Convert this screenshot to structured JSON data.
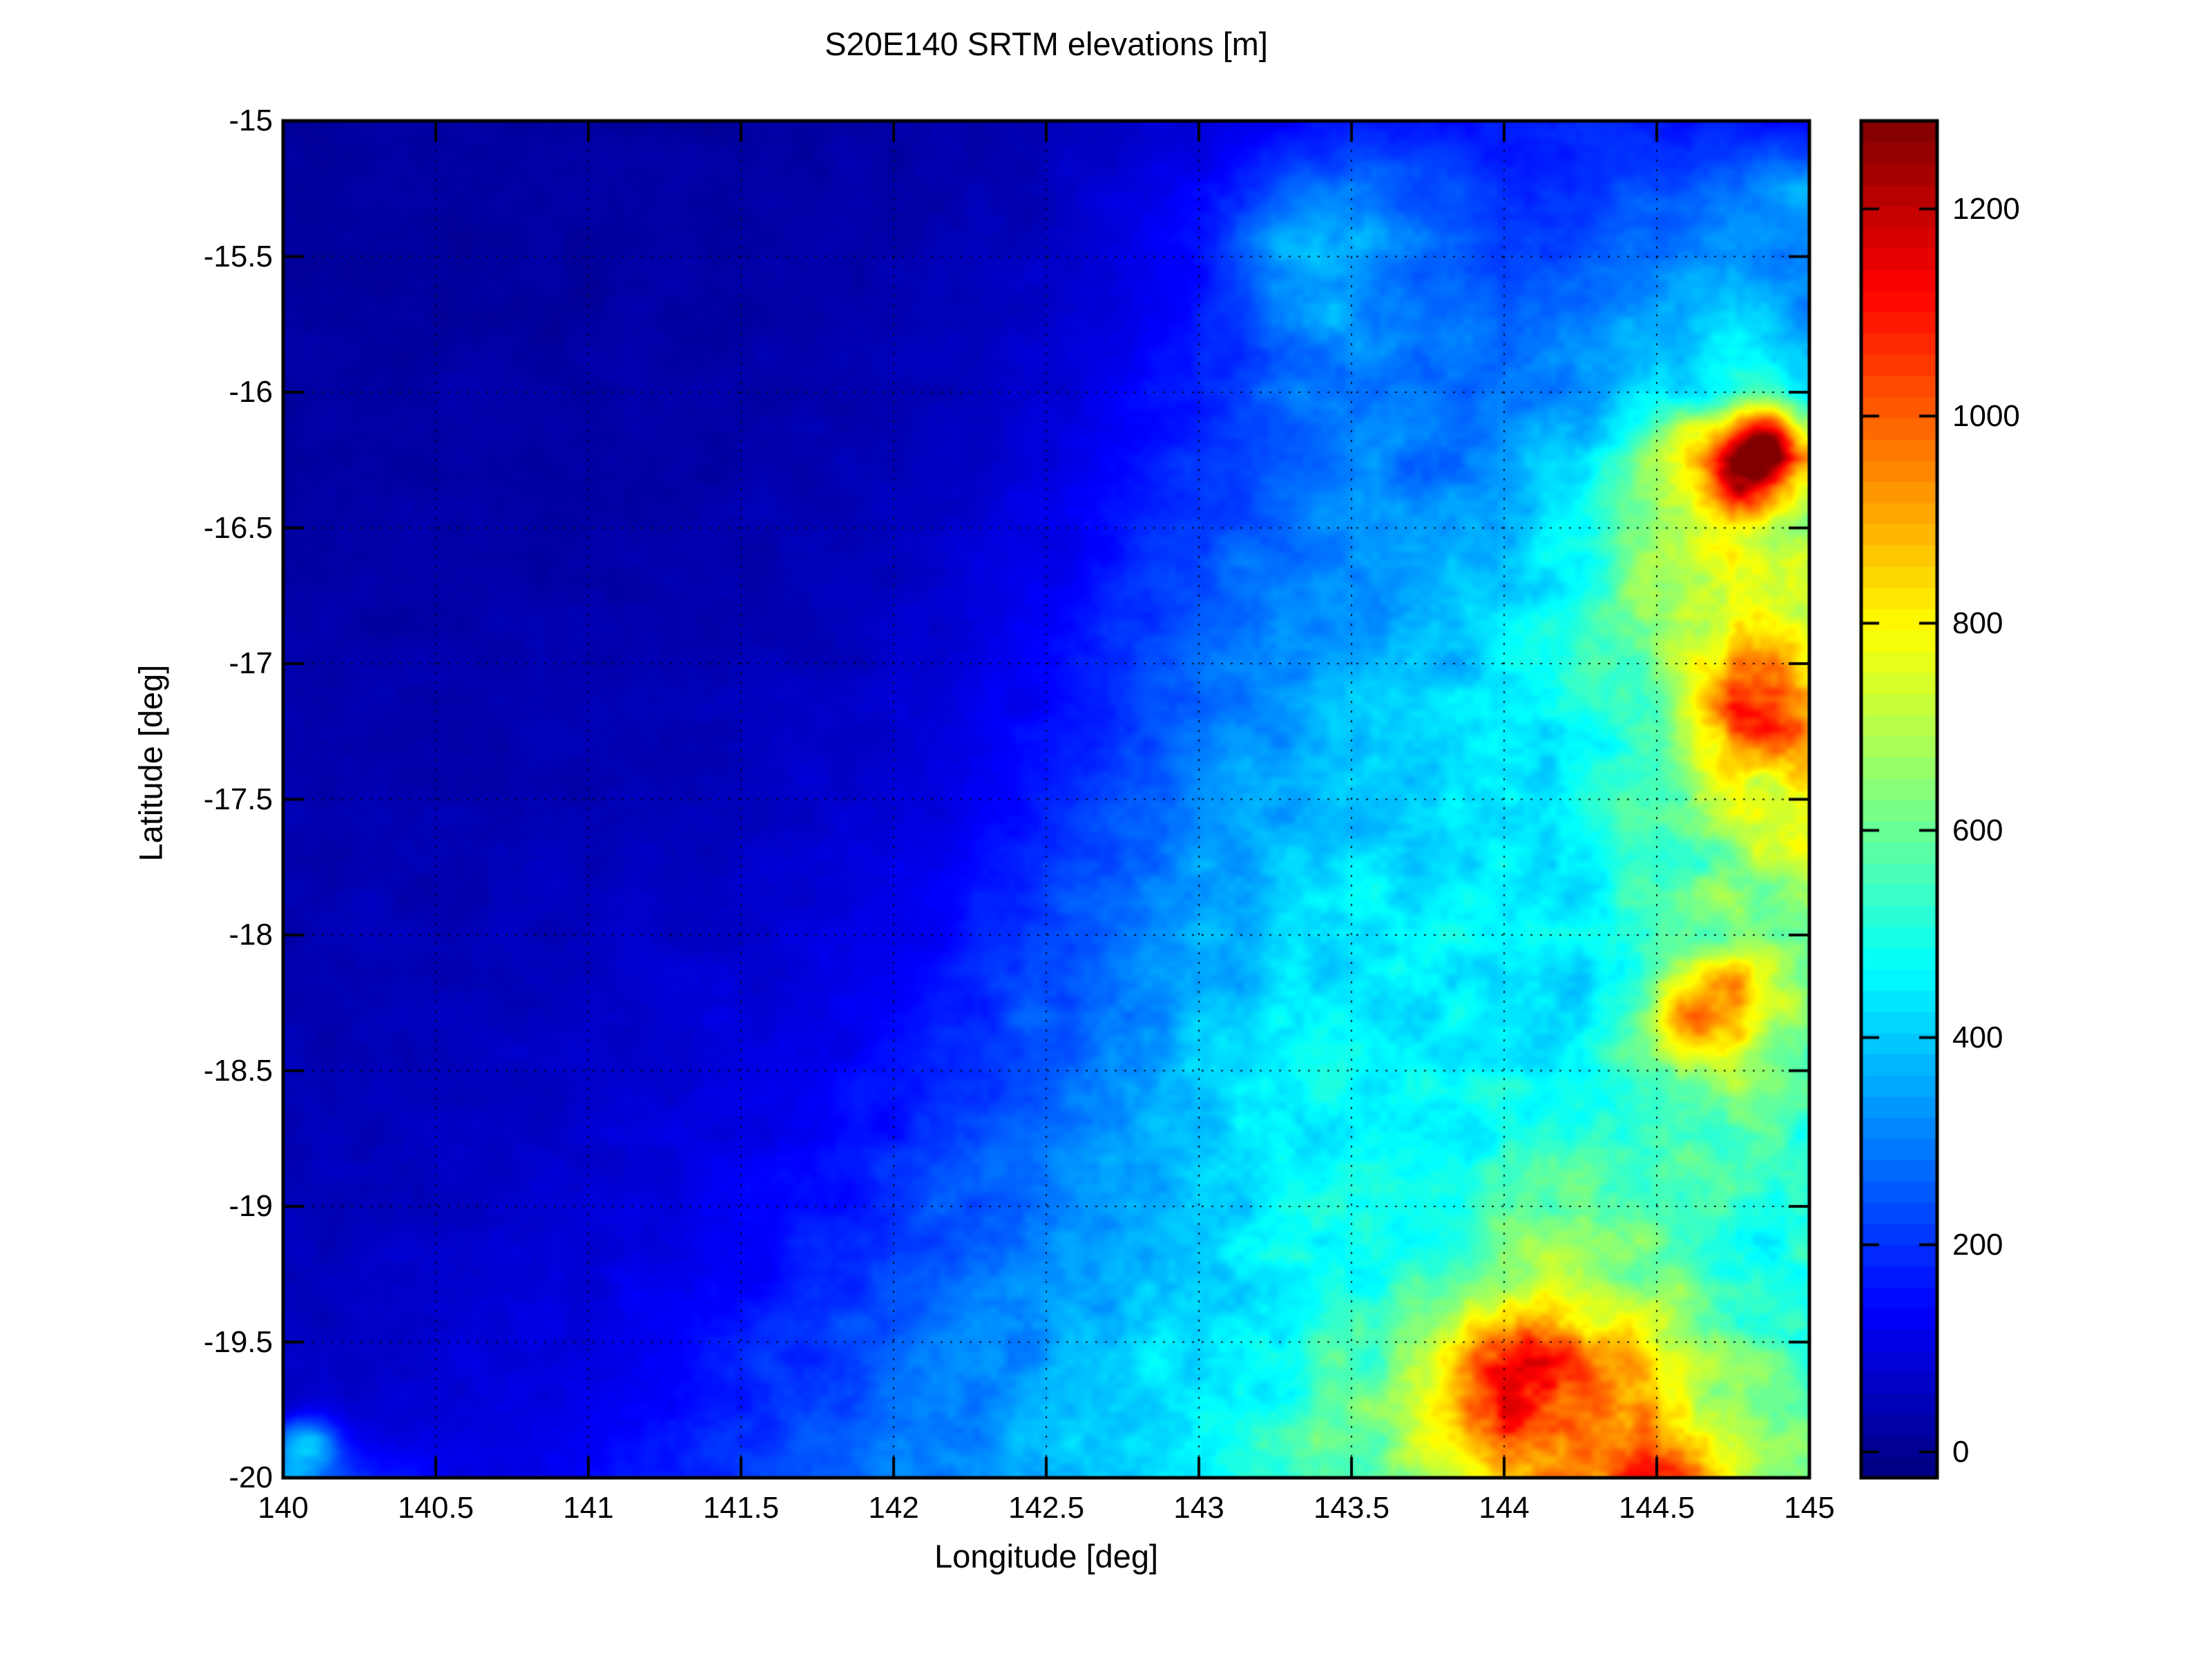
{
  "figure": {
    "title": "S20E140 SRTM elevations [m]",
    "xlabel": "Longitude [deg]",
    "ylabel": "Latitude [deg]",
    "background": "#ffffff",
    "text_color": "#000000"
  },
  "chart_data": {
    "type": "heatmap",
    "title": "S20E140 SRTM elevations [m]",
    "xlabel": "Longitude [deg]",
    "ylabel": "Latitude [deg]",
    "xlim": [
      140,
      145
    ],
    "ylim": [
      -20,
      -15
    ],
    "grid": "dotted",
    "colormap": "jet",
    "color_axis": {
      "vmin": -25,
      "vmax": 1285,
      "units": "m"
    },
    "xticks": {
      "values": [
        140,
        140.5,
        141,
        141.5,
        142,
        142.5,
        143,
        143.5,
        144,
        144.5,
        145
      ],
      "labels": [
        "140",
        "140.5",
        "141",
        "141.5",
        "142",
        "142.5",
        "143",
        "143.5",
        "144",
        "144.5",
        "145"
      ]
    },
    "yticks": {
      "values": [
        -15,
        -15.5,
        -16,
        -16.5,
        -17,
        -17.5,
        -18,
        -18.5,
        -19,
        -19.5,
        -20
      ],
      "labels": [
        "-15",
        "-15.5",
        "-16",
        "-16.5",
        "-17",
        "-17.5",
        "-18",
        "-18.5",
        "-19",
        "-19.5",
        "-20"
      ]
    },
    "colorbar": {
      "tick_values": [
        0,
        200,
        400,
        600,
        800,
        1000,
        1200
      ],
      "tick_labels": [
        "0",
        "200",
        "400",
        "600",
        "800",
        "1000",
        "1200"
      ],
      "bands": 64
    },
    "elevation_grid": {
      "units": "m",
      "lon_start": 140,
      "lon_step": 0.25,
      "lat_start": -15,
      "lat_step": -0.25,
      "note": "coarse 21x21 sampling of the SRTM tile, rows north to south",
      "values": [
        [
          15,
          15,
          14,
          14,
          15,
          16,
          18,
          20,
          24,
          30,
          40,
          60,
          90,
          130,
          155,
          165,
          175,
          185,
          175,
          160,
          150
        ],
        [
          15,
          15,
          15,
          15,
          16,
          18,
          20,
          24,
          30,
          40,
          55,
          85,
          130,
          220,
          300,
          240,
          200,
          210,
          230,
          280,
          380
        ],
        [
          16,
          16,
          16,
          16,
          18,
          20,
          22,
          26,
          32,
          45,
          60,
          95,
          150,
          260,
          320,
          260,
          220,
          240,
          280,
          330,
          300
        ],
        [
          18,
          18,
          18,
          18,
          20,
          22,
          25,
          30,
          38,
          50,
          70,
          110,
          180,
          280,
          330,
          300,
          260,
          300,
          350,
          400,
          350
        ],
        [
          20,
          20,
          20,
          20,
          22,
          25,
          28,
          34,
          42,
          55,
          80,
          120,
          180,
          260,
          300,
          280,
          280,
          340,
          430,
          520,
          430
        ],
        [
          22,
          22,
          22,
          22,
          25,
          28,
          32,
          38,
          48,
          65,
          95,
          140,
          200,
          260,
          300,
          300,
          330,
          430,
          700,
          1050,
          870
        ],
        [
          25,
          25,
          25,
          25,
          28,
          32,
          36,
          42,
          55,
          75,
          110,
          160,
          220,
          280,
          320,
          330,
          370,
          450,
          600,
          740,
          650
        ],
        [
          28,
          28,
          28,
          28,
          32,
          36,
          40,
          48,
          62,
          85,
          120,
          180,
          240,
          300,
          340,
          360,
          400,
          480,
          660,
          810,
          700
        ],
        [
          30,
          30,
          30,
          32,
          36,
          40,
          45,
          55,
          70,
          95,
          135,
          200,
          260,
          320,
          360,
          380,
          420,
          500,
          610,
          840,
          800
        ],
        [
          32,
          32,
          32,
          36,
          40,
          45,
          50,
          60,
          78,
          105,
          150,
          220,
          280,
          340,
          380,
          400,
          430,
          480,
          580,
          880,
          820
        ],
        [
          35,
          35,
          36,
          40,
          45,
          50,
          56,
          68,
          88,
          120,
          170,
          240,
          300,
          360,
          400,
          415,
          440,
          480,
          560,
          700,
          780
        ],
        [
          38,
          38,
          40,
          45,
          50,
          56,
          64,
          78,
          100,
          140,
          200,
          260,
          320,
          380,
          415,
          430,
          450,
          480,
          540,
          620,
          700
        ],
        [
          40,
          42,
          45,
          50,
          56,
          64,
          75,
          90,
          115,
          160,
          220,
          280,
          340,
          400,
          430,
          440,
          460,
          430,
          560,
          640,
          600
        ],
        [
          42,
          45,
          48,
          54,
          62,
          72,
          85,
          105,
          135,
          185,
          250,
          310,
          370,
          420,
          440,
          450,
          470,
          400,
          650,
          880,
          650
        ],
        [
          45,
          48,
          52,
          58,
          68,
          80,
          95,
          118,
          152,
          210,
          270,
          330,
          390,
          430,
          450,
          460,
          470,
          450,
          560,
          700,
          560
        ],
        [
          48,
          52,
          56,
          64,
          75,
          90,
          108,
          135,
          175,
          235,
          290,
          350,
          400,
          440,
          460,
          470,
          480,
          500,
          540,
          560,
          520
        ],
        [
          52,
          56,
          62,
          72,
          85,
          100,
          122,
          155,
          200,
          260,
          310,
          360,
          410,
          450,
          470,
          490,
          560,
          620,
          560,
          520,
          480
        ],
        [
          56,
          62,
          70,
          82,
          96,
          115,
          140,
          178,
          230,
          280,
          330,
          380,
          420,
          460,
          490,
          540,
          620,
          700,
          620,
          540,
          500
        ],
        [
          62,
          68,
          78,
          92,
          110,
          132,
          162,
          205,
          255,
          300,
          350,
          400,
          440,
          480,
          540,
          640,
          800,
          900,
          750,
          600,
          520
        ],
        [
          70,
          78,
          88,
          105,
          125,
          152,
          188,
          235,
          280,
          320,
          370,
          420,
          460,
          500,
          580,
          700,
          950,
          900,
          850,
          700,
          560
        ],
        [
          300,
          200,
          120,
          118,
          140,
          170,
          210,
          255,
          300,
          340,
          390,
          430,
          470,
          520,
          600,
          720,
          880,
          950,
          900,
          800,
          620
        ]
      ]
    },
    "peaks": [
      {
        "lon": 144.85,
        "lat": -16.2,
        "sigma": 0.09,
        "amp": 430
      },
      {
        "lon": 144.78,
        "lat": -16.33,
        "sigma": 0.07,
        "amp": 200
      },
      {
        "lon": 144.86,
        "lat": -17.15,
        "sigma": 0.13,
        "amp": 220
      },
      {
        "lon": 144.65,
        "lat": -18.3,
        "sigma": 0.11,
        "amp": 200
      },
      {
        "lon": 144.05,
        "lat": -19.63,
        "sigma": 0.14,
        "amp": 280
      },
      {
        "lon": 144.5,
        "lat": -19.95,
        "sigma": 0.12,
        "amp": 160
      },
      {
        "lon": 143.35,
        "lat": -15.5,
        "sigma": 0.14,
        "amp": 90
      },
      {
        "lon": 140.08,
        "lat": -19.87,
        "sigma": 0.07,
        "amp": 260
      }
    ]
  }
}
